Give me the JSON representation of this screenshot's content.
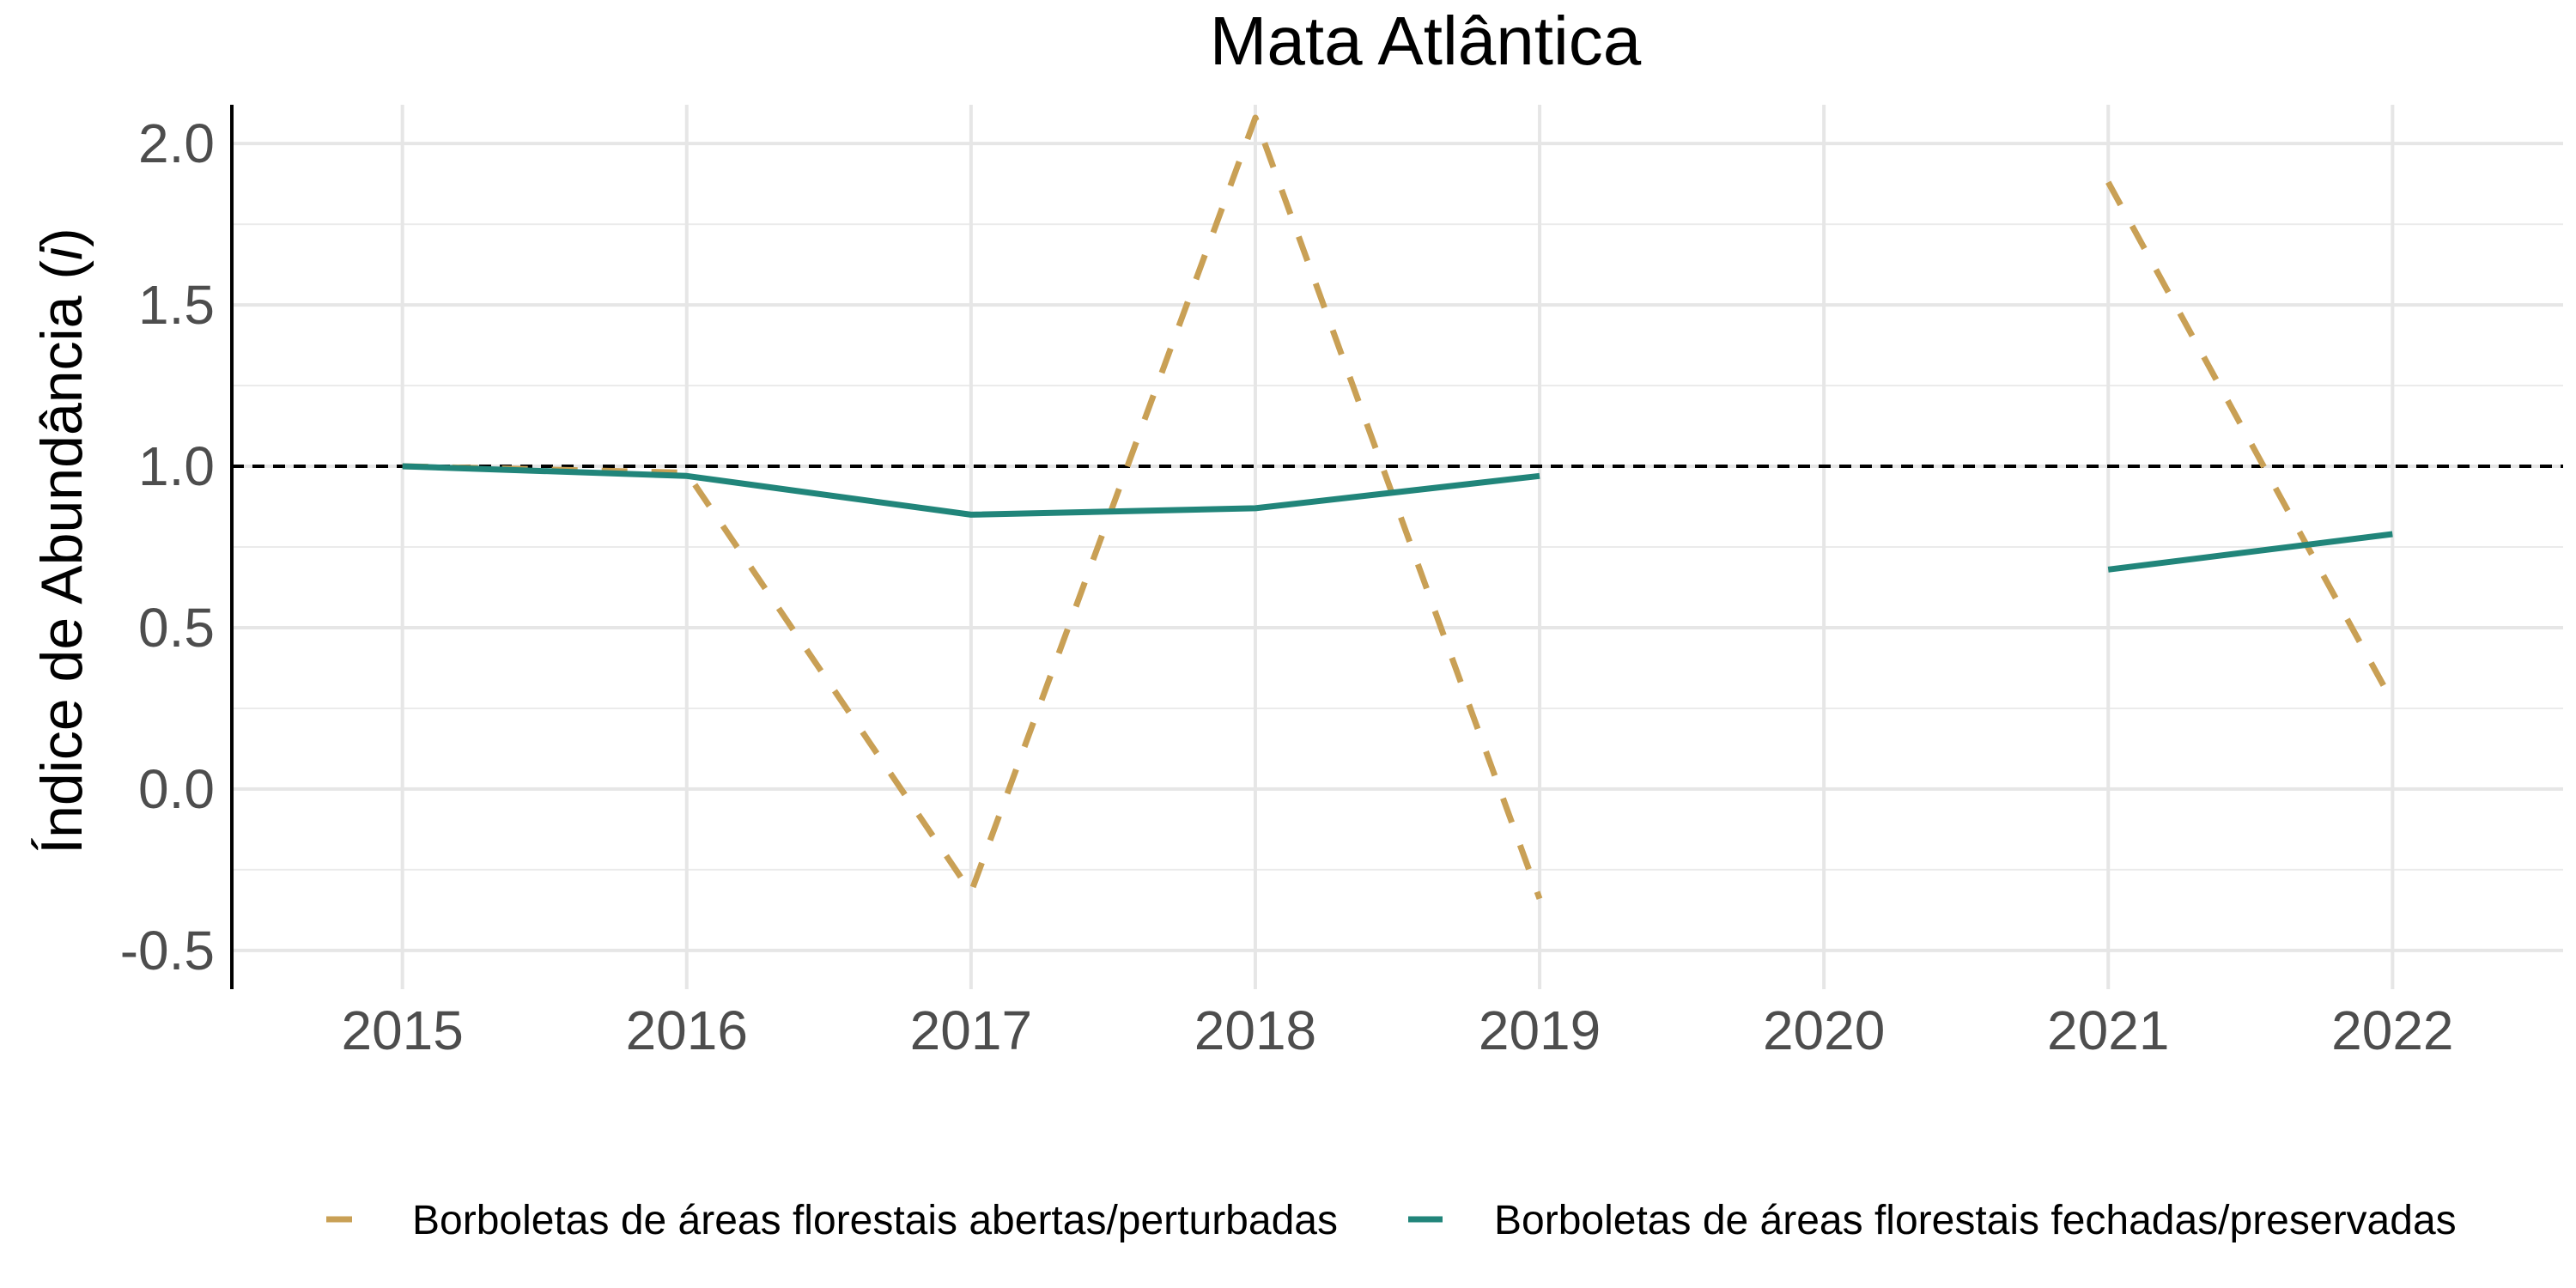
{
  "chart_data": {
    "type": "line",
    "title": "Mata Atlântica",
    "ylabel_prefix": "Índice de Abundância (",
    "ylabel_italic": "i",
    "ylabel_suffix": ")",
    "xlabel": "",
    "x_ticks": [
      "2015",
      "2016",
      "2017",
      "2018",
      "2019",
      "2020",
      "2021",
      "2022"
    ],
    "y_ticks": [
      "-0.5",
      "0.0",
      "0.5",
      "1.0",
      "1.5",
      "2.0"
    ],
    "xlim": [
      2014.4,
      2022.6
    ],
    "ylim": [
      -0.62,
      2.12
    ],
    "reference_line": 1.0,
    "grid": true,
    "legend_position": "bottom",
    "series": [
      {
        "name": "Borboletas de áreas florestais abertas/perturbadas",
        "color": "#C9A055",
        "dash": "dashed",
        "segments": [
          [
            [
              2015,
              1.0
            ],
            [
              2016,
              0.98
            ],
            [
              2017,
              -0.32
            ],
            [
              2018,
              2.08
            ],
            [
              2019,
              -0.34
            ]
          ],
          [
            [
              2021,
              1.88
            ],
            [
              2022,
              0.27
            ]
          ]
        ]
      },
      {
        "name": "Borboletas de áreas florestais fechadas/preservadas",
        "color": "#21857A",
        "dash": "solid",
        "segments": [
          [
            [
              2015,
              1.0
            ],
            [
              2016,
              0.97
            ],
            [
              2017,
              0.85
            ],
            [
              2018,
              0.87
            ],
            [
              2019,
              0.97
            ]
          ],
          [
            [
              2021,
              0.68
            ],
            [
              2022,
              0.79
            ]
          ]
        ]
      }
    ]
  }
}
